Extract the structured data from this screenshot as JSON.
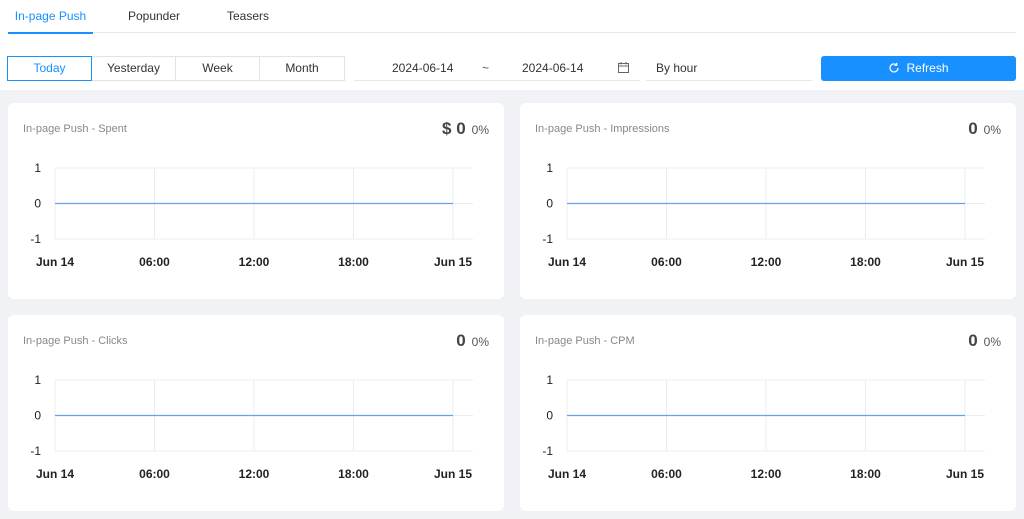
{
  "tabs": [
    {
      "label": "In-page Push",
      "active": true
    },
    {
      "label": "Popunder",
      "active": false
    },
    {
      "label": "Teasers",
      "active": false
    }
  ],
  "range": [
    {
      "label": "Today",
      "active": true
    },
    {
      "label": "Yesterday",
      "active": false
    },
    {
      "label": "Week",
      "active": false
    },
    {
      "label": "Month",
      "active": false
    }
  ],
  "date_picker": {
    "start": "2024-06-14",
    "separator": "~",
    "end": "2024-06-14",
    "icon": "calendar-icon"
  },
  "group_by": "By hour",
  "refresh": {
    "label": "Refresh",
    "icon": "refresh-icon"
  },
  "colors": {
    "accent": "#1890ff",
    "line": "#6a9ef0",
    "grid": "#ececec"
  },
  "cards": [
    {
      "title": "In-page Push - Spent",
      "value": "$ 0",
      "change": "0%"
    },
    {
      "title": "In-page Push - Impressions",
      "value": "0",
      "change": "0%"
    },
    {
      "title": "In-page Push - Clicks",
      "value": "0",
      "change": "0%"
    },
    {
      "title": "In-page Push - CPM",
      "value": "0",
      "change": "0%"
    }
  ],
  "chart_data": [
    {
      "type": "line",
      "title": "In-page Push - Spent",
      "x_ticks": [
        "Jun 14",
        "06:00",
        "12:00",
        "18:00",
        "Jun 15"
      ],
      "y_ticks": [
        "1",
        "0",
        "-1"
      ],
      "ylim": [
        -1,
        1
      ],
      "x": [
        0,
        24
      ],
      "values": [
        0,
        0
      ],
      "grid": true
    },
    {
      "type": "line",
      "title": "In-page Push - Impressions",
      "x_ticks": [
        "Jun 14",
        "06:00",
        "12:00",
        "18:00",
        "Jun 15"
      ],
      "y_ticks": [
        "1",
        "0",
        "-1"
      ],
      "ylim": [
        -1,
        1
      ],
      "x": [
        0,
        24
      ],
      "values": [
        0,
        0
      ],
      "grid": true
    },
    {
      "type": "line",
      "title": "In-page Push - Clicks",
      "x_ticks": [
        "Jun 14",
        "06:00",
        "12:00",
        "18:00",
        "Jun 15"
      ],
      "y_ticks": [
        "1",
        "0",
        "-1"
      ],
      "ylim": [
        -1,
        1
      ],
      "x": [
        0,
        24
      ],
      "values": [
        0,
        0
      ],
      "grid": true
    },
    {
      "type": "line",
      "title": "In-page Push - CPM",
      "x_ticks": [
        "Jun 14",
        "06:00",
        "12:00",
        "18:00",
        "Jun 15"
      ],
      "y_ticks": [
        "1",
        "0",
        "-1"
      ],
      "ylim": [
        -1,
        1
      ],
      "x": [
        0,
        24
      ],
      "values": [
        0,
        0
      ],
      "grid": true
    }
  ]
}
